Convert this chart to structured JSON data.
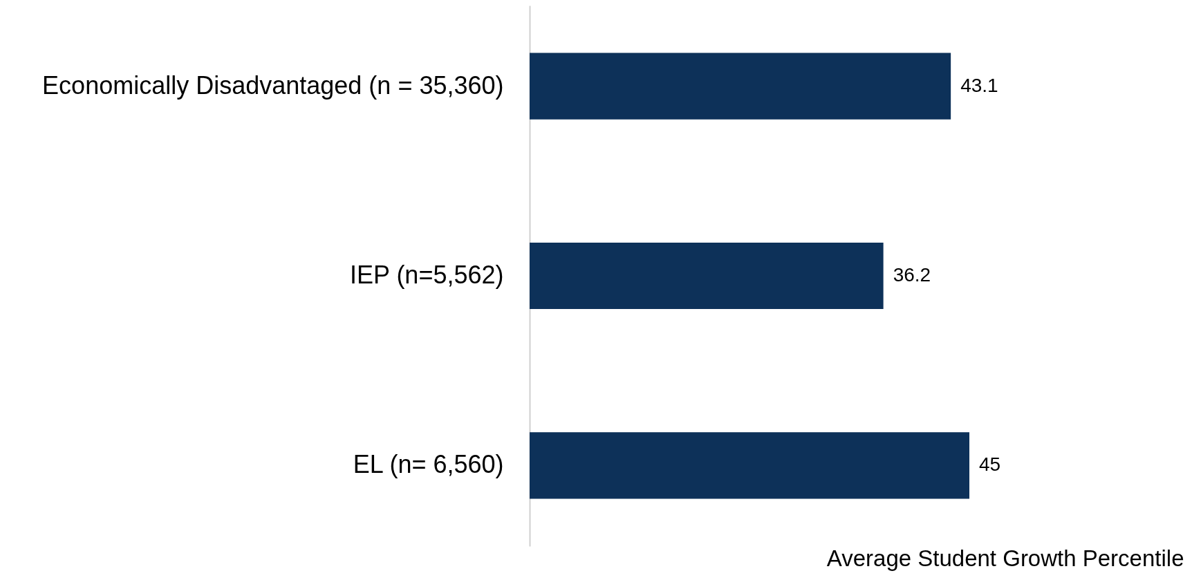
{
  "chart_data": {
    "type": "bar",
    "orientation": "horizontal",
    "xlabel": "Average Student Growth Percentile",
    "categories": [
      "Economically Disadvantaged (n = 35,360)",
      "IEP (n=5,562)",
      "EL (n= 6,560)"
    ],
    "values": [
      43.1,
      36.2,
      45
    ],
    "color": "#0d3159",
    "data_labels": true,
    "grid": false
  }
}
